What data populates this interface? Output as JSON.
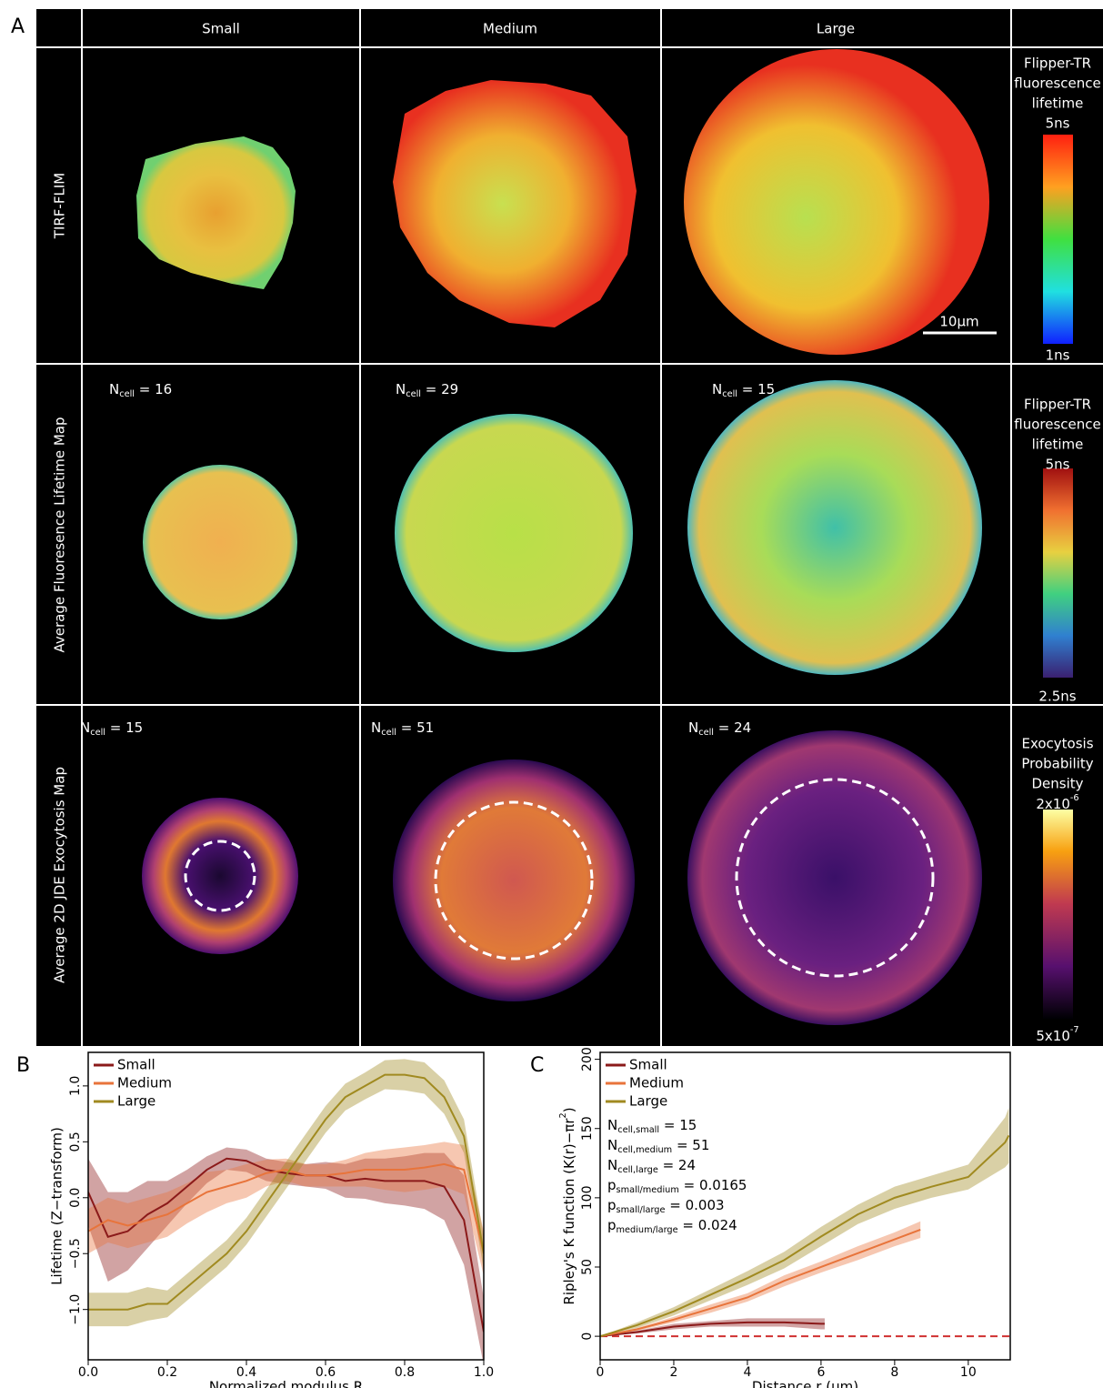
{
  "panel_a": {
    "label": "A",
    "columns": [
      "Small",
      "Medium",
      "Large"
    ],
    "rows": [
      "TIRF-FLIM",
      "Average Fluoresence Lifetime Map",
      "Average 2D JDE Exocytosis Map"
    ],
    "colorbars": [
      {
        "title": [
          "Flipper-TR",
          "fluorescence",
          "lifetime"
        ],
        "top": "5ns",
        "bottom": "1ns"
      },
      {
        "title": [
          "Flipper-TR",
          "fluorescence",
          "lifetime"
        ],
        "top": "5ns",
        "bottom": "2.5ns"
      },
      {
        "title": [
          "Exocytosis",
          "Probability",
          "Density"
        ],
        "top": {
          "main": "2x10",
          "sup": "-6"
        },
        "bottom": {
          "main": "5x10",
          "sup": "-7"
        }
      }
    ],
    "scale_bar": "10µm",
    "n_cell_lifetime": [
      {
        "main": "N",
        "sub": "cell",
        "rest": " = 16"
      },
      {
        "main": "N",
        "sub": "cell",
        "rest": " = 29"
      },
      {
        "main": "N",
        "sub": "cell",
        "rest": " = 15"
      }
    ],
    "n_cell_exocytosis": [
      {
        "main": "N",
        "sub": "cell",
        "rest": " = 15"
      },
      {
        "main": "N",
        "sub": "cell",
        "rest": " = 51"
      },
      {
        "main": "N",
        "sub": "cell",
        "rest": " = 24"
      }
    ]
  },
  "chart_data": [
    {
      "type": "line",
      "label": "B",
      "xlabel": "Normalized modulus R",
      "ylabel": "Lifetime (Z−transform)",
      "xlim": [
        0,
        1
      ],
      "ylim": [
        -1.45,
        1.3
      ],
      "xticks": [
        {
          "value": 0,
          "label": "0.0"
        },
        {
          "value": 0.2,
          "label": "0.2"
        },
        {
          "value": 0.4,
          "label": "0.4"
        },
        {
          "value": 0.6,
          "label": "0.6"
        },
        {
          "value": 0.8,
          "label": "0.8"
        },
        {
          "value": 1,
          "label": "1.0"
        }
      ],
      "yticks": [
        {
          "value": -1,
          "label": "−1.0"
        },
        {
          "value": -0.5,
          "label": "−0.5"
        },
        {
          "value": 0,
          "label": "0.0"
        },
        {
          "value": 0.5,
          "label": "0.5"
        },
        {
          "value": 1,
          "label": "1.0"
        }
      ],
      "legend": "top-left",
      "series": [
        {
          "name": "Small",
          "color": "#8b1a1a",
          "x": [
            0,
            0.05,
            0.1,
            0.15,
            0.2,
            0.25,
            0.3,
            0.35,
            0.4,
            0.45,
            0.5,
            0.55,
            0.6,
            0.65,
            0.7,
            0.75,
            0.8,
            0.85,
            0.9,
            0.95,
            1.0
          ],
          "values": [
            0.05,
            -0.35,
            -0.3,
            -0.15,
            -0.05,
            0.1,
            0.25,
            0.35,
            0.33,
            0.25,
            0.22,
            0.2,
            0.2,
            0.15,
            0.17,
            0.15,
            0.15,
            0.15,
            0.1,
            -0.2,
            -1.2
          ],
          "errors": [
            0.3,
            0.4,
            0.35,
            0.3,
            0.2,
            0.15,
            0.12,
            0.1,
            0.1,
            0.1,
            0.1,
            0.1,
            0.12,
            0.15,
            0.18,
            0.2,
            0.22,
            0.25,
            0.3,
            0.4,
            0.3
          ]
        },
        {
          "name": "Medium",
          "color": "#e8743b",
          "x": [
            0,
            0.05,
            0.1,
            0.15,
            0.2,
            0.25,
            0.3,
            0.35,
            0.4,
            0.45,
            0.5,
            0.55,
            0.6,
            0.65,
            0.7,
            0.75,
            0.8,
            0.85,
            0.9,
            0.95,
            1.0
          ],
          "values": [
            -0.3,
            -0.2,
            -0.25,
            -0.2,
            -0.15,
            -0.05,
            0.05,
            0.1,
            0.15,
            0.22,
            0.25,
            0.2,
            0.2,
            0.22,
            0.25,
            0.25,
            0.25,
            0.27,
            0.3,
            0.25,
            -0.5
          ],
          "errors": [
            0.2,
            0.2,
            0.2,
            0.2,
            0.2,
            0.18,
            0.18,
            0.15,
            0.15,
            0.12,
            0.1,
            0.1,
            0.1,
            0.12,
            0.15,
            0.18,
            0.2,
            0.2,
            0.2,
            0.22,
            0.2
          ]
        },
        {
          "name": "Large",
          "color": "#a08a20",
          "x": [
            0,
            0.05,
            0.1,
            0.15,
            0.2,
            0.25,
            0.3,
            0.35,
            0.4,
            0.45,
            0.5,
            0.55,
            0.6,
            0.65,
            0.7,
            0.75,
            0.8,
            0.85,
            0.9,
            0.95,
            1.0
          ],
          "values": [
            -1.0,
            -1.0,
            -1.0,
            -0.95,
            -0.95,
            -0.8,
            -0.65,
            -0.5,
            -0.3,
            -0.05,
            0.2,
            0.45,
            0.7,
            0.9,
            1.0,
            1.1,
            1.1,
            1.07,
            0.9,
            0.55,
            -0.5
          ],
          "errors": [
            0.15,
            0.15,
            0.15,
            0.15,
            0.12,
            0.12,
            0.12,
            0.12,
            0.12,
            0.12,
            0.12,
            0.12,
            0.12,
            0.12,
            0.12,
            0.13,
            0.14,
            0.14,
            0.15,
            0.15,
            0.15
          ]
        }
      ]
    },
    {
      "type": "line",
      "label": "C",
      "xlabel": "Distance r (µm)",
      "ylabel": {
        "main": "Ripley's K function (K(r)−πr",
        "sup": "2",
        "tail": ")"
      },
      "xlim": [
        0,
        11.14
      ],
      "ylim": [
        -17,
        205
      ],
      "xticks": [
        0,
        2,
        4,
        6,
        8,
        10
      ],
      "yticks": [
        0,
        50,
        100,
        150,
        200
      ],
      "hline": {
        "value": 0,
        "color": "#d03030"
      },
      "legend": "top-left",
      "series": [
        {
          "name": "Small",
          "color": "#8b1a1a",
          "x": [
            0,
            1,
            2,
            3,
            4,
            5,
            6,
            6.1
          ],
          "values": [
            0,
            3,
            7,
            9,
            10,
            10,
            9,
            9
          ],
          "errors": [
            0,
            1,
            2,
            2,
            3,
            3,
            4,
            4
          ]
        },
        {
          "name": "Medium",
          "color": "#e8743b",
          "x": [
            0,
            1,
            2,
            3,
            4,
            5,
            6,
            7,
            8,
            8.7
          ],
          "values": [
            0,
            5,
            12,
            20,
            28,
            40,
            50,
            60,
            70,
            77
          ],
          "errors": [
            0,
            1,
            2,
            3,
            3,
            4,
            4,
            5,
            5,
            6
          ]
        },
        {
          "name": "Large",
          "color": "#a08a20",
          "x": [
            0,
            1,
            2,
            3,
            4,
            5,
            6,
            7,
            8,
            9,
            10,
            11,
            11.1
          ],
          "values": [
            0,
            8,
            18,
            30,
            42,
            55,
            72,
            88,
            100,
            108,
            115,
            140,
            145
          ],
          "errors": [
            0,
            2,
            3,
            4,
            5,
            6,
            7,
            7,
            8,
            8,
            9,
            18,
            20
          ]
        }
      ],
      "annotations": [
        {
          "main": "N",
          "sub": "cell,small",
          "rest": " = 15"
        },
        {
          "main": "N",
          "sub": "cell,medium",
          "rest": " = 51"
        },
        {
          "main": "N",
          "sub": "cell,large",
          "rest": " = 24"
        },
        {
          "main": "p",
          "sub": "small/medium",
          "rest": " = 0.0165"
        },
        {
          "main": "p",
          "sub": "small/large",
          "rest": " = 0.003"
        },
        {
          "main": "p",
          "sub": "medium/large",
          "rest": " = 0.024"
        }
      ]
    }
  ]
}
